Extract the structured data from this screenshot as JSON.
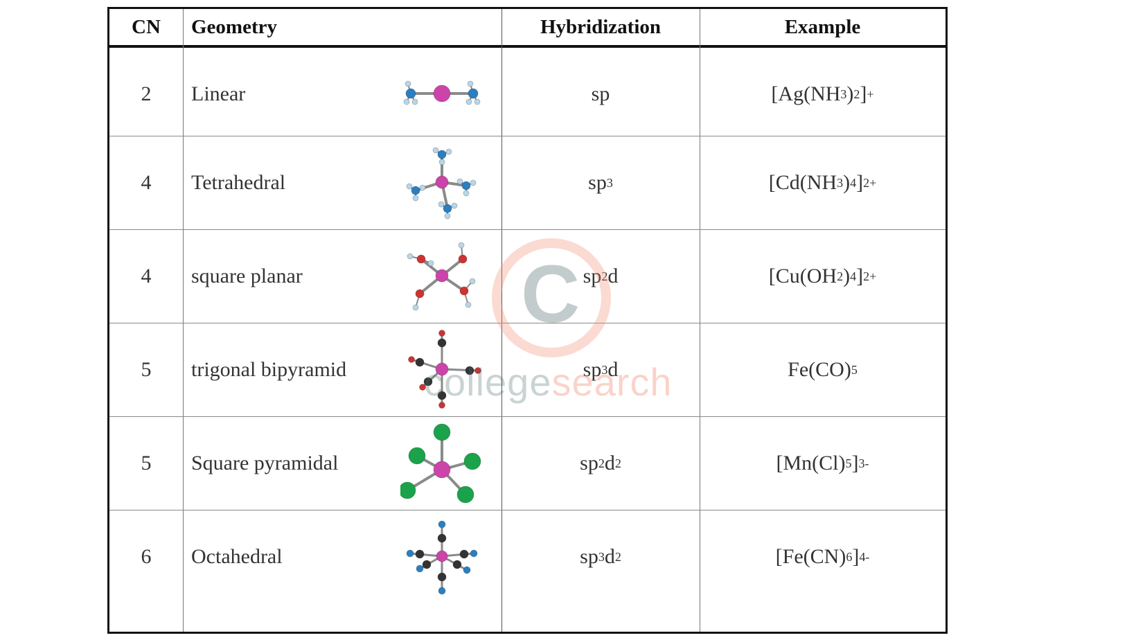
{
  "table": {
    "headers": {
      "cn": "CN",
      "geometry": "Geometry",
      "hybridization": "Hybridization",
      "example": "Example"
    },
    "rows": [
      {
        "cn": "2",
        "geometry": "Linear",
        "hyb": {
          "base": "sp",
          "sup1": "",
          "mid": "",
          "sup2": ""
        },
        "example": {
          "pre": "[Ag(NH",
          "sub1": "3",
          "mid": ")",
          "sub2": "2",
          "post": "]",
          "sup": "+"
        },
        "molecule_icon": "linear-molecule-icon"
      },
      {
        "cn": "4",
        "geometry": "Tetrahedral",
        "hyb": {
          "base": "sp",
          "sup1": "3",
          "mid": "",
          "sup2": ""
        },
        "example": {
          "pre": "[Cd(NH",
          "sub1": "3",
          "mid": ")",
          "sub2": "4",
          "post": "]",
          "sup": "2+"
        },
        "molecule_icon": "tetrahedral-molecule-icon"
      },
      {
        "cn": "4",
        "geometry": "square planar",
        "hyb": {
          "base": "sp",
          "sup1": "2",
          "mid": "d",
          "sup2": ""
        },
        "example": {
          "pre": "[Cu(OH",
          "sub1": "2",
          "mid": ")",
          "sub2": "4",
          "post": "]",
          "sup": "2+"
        },
        "molecule_icon": "square-planar-molecule-icon"
      },
      {
        "cn": "5",
        "geometry": "trigonal bipyramid",
        "hyb": {
          "base": "sp",
          "sup1": "3",
          "mid": "d",
          "sup2": ""
        },
        "example": {
          "pre": "Fe(CO)",
          "sub1": "5",
          "mid": "",
          "sub2": "",
          "post": "",
          "sup": ""
        },
        "molecule_icon": "trigonal-bipyramid-molecule-icon"
      },
      {
        "cn": "5",
        "geometry": "Square pyramidal",
        "hyb": {
          "base": "sp",
          "sup1": "2",
          "mid": "d",
          "sup2": "2"
        },
        "example": {
          "pre": "[Mn(Cl)",
          "sub1": "5",
          "mid": "",
          "sub2": "",
          "post": "]",
          "sup": "3-"
        },
        "molecule_icon": "square-pyramidal-molecule-icon"
      },
      {
        "cn": "6",
        "geometry": "Octahedral",
        "hyb": {
          "base": "sp",
          "sup1": "3",
          "mid": "d",
          "sup2": "2"
        },
        "example": {
          "pre": "[Fe(CN)",
          "sub1": "6",
          "mid": "",
          "sub2": "",
          "post": "]",
          "sup": "4-"
        },
        "molecule_icon": "octahedral-molecule-icon"
      }
    ]
  },
  "watermark": {
    "part1": "college",
    "part2": "search",
    "logo_letter": "C"
  },
  "colors": {
    "metal": "#cc44aa",
    "nitrogen": "#2a7fc0",
    "hydrogen": "#b8d6e6",
    "oxygen": "#cc3333",
    "carbon": "#333333",
    "chlorine": "#1aa34a",
    "watermark_salmon": "#f28c73",
    "watermark_gray": "#506e6e"
  }
}
